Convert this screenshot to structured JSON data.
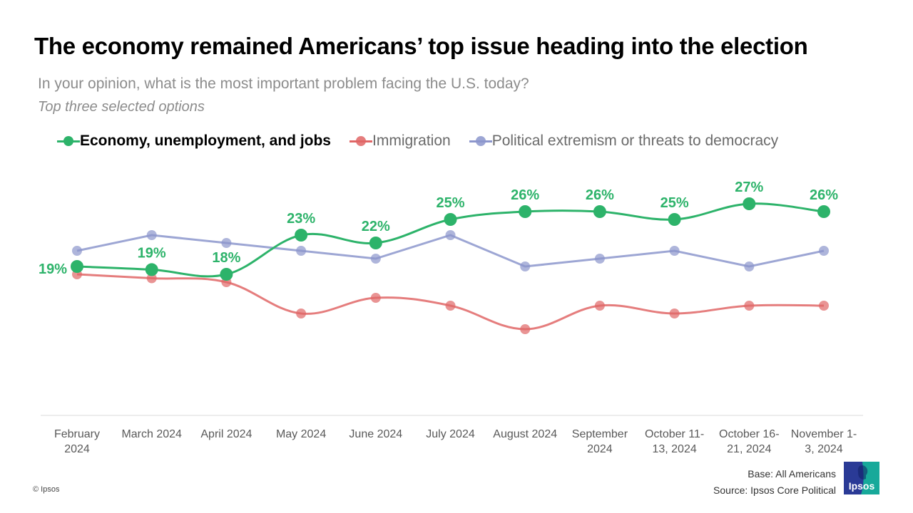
{
  "title": "The economy remained Americans’ top issue heading into the election",
  "subtitle": "In your opinion, what is the most important problem facing the U.S. today?",
  "subnote": "Top three selected options",
  "footer": {
    "base": "Base: All Americans",
    "source": "Source: Ipsos Core Political",
    "copyright": "© Ipsos",
    "logo_text": "Ipsos"
  },
  "colors": {
    "economy": "#2db36a",
    "immigration": "#e06666",
    "political": "#8c96cc",
    "axis": "#d9d9d9",
    "tick_text": "#595959"
  },
  "chart_data": {
    "type": "line",
    "title": "The economy remained Americans’ top issue heading into the election",
    "xlabel": "",
    "ylabel": "",
    "ylim": [
      0,
      30
    ],
    "grid": false,
    "legend_position": "top-left",
    "categories": [
      [
        "February",
        "2024"
      ],
      [
        "March 2024"
      ],
      [
        "April 2024"
      ],
      [
        "May 2024"
      ],
      [
        "June 2024"
      ],
      [
        "July 2024"
      ],
      [
        "August 2024"
      ],
      [
        "September",
        "2024"
      ],
      [
        "October 11-",
        "13, 2024"
      ],
      [
        "October 16-",
        "21, 2024"
      ],
      [
        "November 1-",
        "3, 2024"
      ]
    ],
    "series": [
      {
        "name": "Political extremism or threats to democracy",
        "key": "political",
        "values": [
          21,
          23,
          22,
          21,
          20,
          23,
          19,
          20,
          21,
          19,
          21
        ],
        "smooth": false,
        "labels": false
      },
      {
        "name": "Immigration",
        "key": "immigration",
        "values": [
          18,
          17.5,
          17,
          13,
          15,
          14,
          11,
          14,
          13,
          14,
          14
        ],
        "smooth": true,
        "labels": false
      },
      {
        "name": "Economy, unemployment, and jobs",
        "key": "economy",
        "values": [
          19,
          18.6,
          18,
          23,
          22,
          25,
          26,
          26,
          25,
          27,
          26
        ],
        "data_labels": [
          "19%",
          "19%",
          "18%",
          "23%",
          "22%",
          "25%",
          "26%",
          "26%",
          "25%",
          "27%",
          "26%"
        ],
        "smooth": true,
        "labels": true,
        "highlight": true
      }
    ]
  },
  "legend": [
    {
      "label": "Economy, unemployment, and jobs",
      "key": "economy",
      "bold": true
    },
    {
      "label": "Immigration",
      "key": "immigration",
      "bold": false
    },
    {
      "label": "Political extremism or threats to democracy",
      "key": "political",
      "bold": false
    }
  ]
}
